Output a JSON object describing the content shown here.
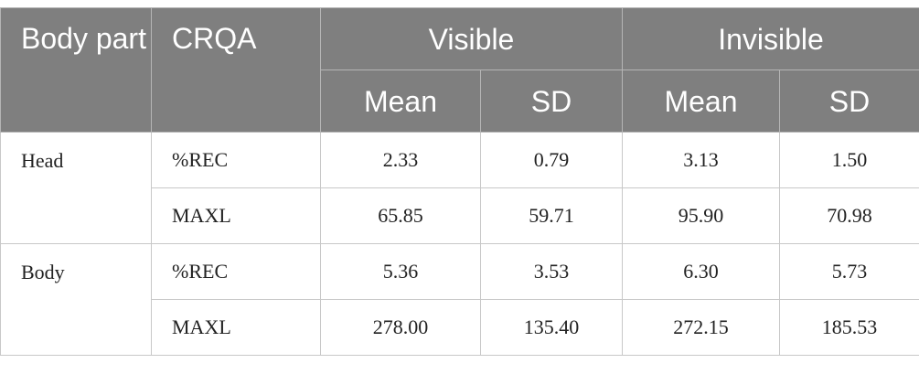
{
  "header": {
    "columns": [
      "Body part",
      "CRQA"
    ],
    "groups": [
      "Visible",
      "Invisible"
    ],
    "subcolumns": [
      "Mean",
      "SD",
      "Mean",
      "SD"
    ]
  },
  "body": [
    {
      "part": "Head",
      "rows": [
        [
          "%REC",
          "2.33",
          "0.79",
          "3.13",
          "1.50"
        ],
        [
          "MAXL",
          "65.85",
          "59.71",
          "95.90",
          "70.98"
        ]
      ]
    },
    {
      "part": "Body",
      "rows": [
        [
          "%REC",
          "5.36",
          "3.53",
          "6.30",
          "5.73"
        ],
        [
          "MAXL",
          "278.00",
          "135.40",
          "272.15",
          "185.53"
        ]
      ]
    }
  ]
}
